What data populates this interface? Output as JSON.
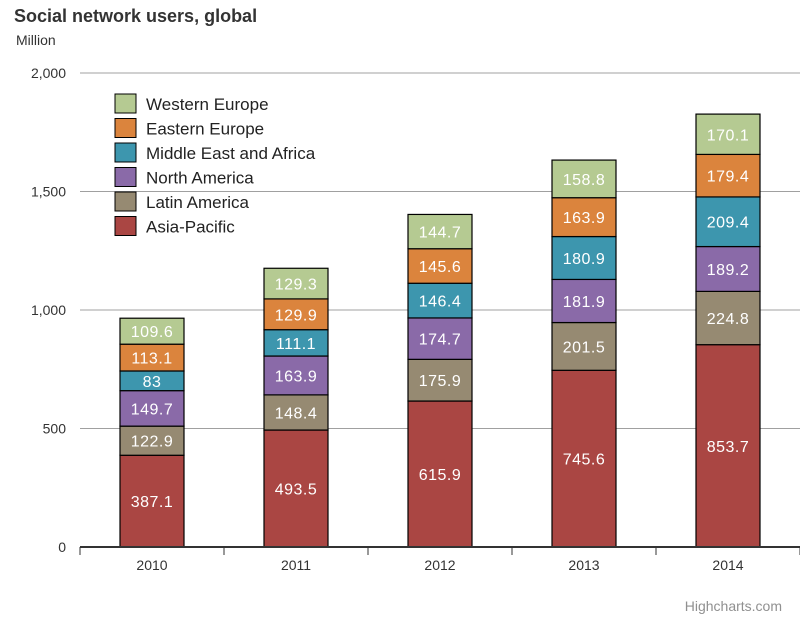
{
  "chart_data": {
    "type": "bar",
    "stacked": true,
    "title": "Social network users, global",
    "subtitle": "Million",
    "ylabel": "Million",
    "xlabel": "",
    "ylim": [
      0,
      2000
    ],
    "yticks": [
      "0",
      "500",
      "1,000",
      "1,500",
      "2,000"
    ],
    "ytick_values": [
      0,
      500,
      1000,
      1500,
      2000
    ],
    "categories": [
      "2010",
      "2011",
      "2012",
      "2013",
      "2014"
    ],
    "legend_position": "top-left",
    "series": [
      {
        "name": "Asia-Pacific",
        "color": "#aa4643",
        "values": [
          387.1,
          493.5,
          615.9,
          745.6,
          853.7
        ],
        "labels": [
          "387.1",
          "493.5",
          "615.9",
          "745.6",
          "853.7"
        ]
      },
      {
        "name": "Latin America",
        "color": "#968a72",
        "values": [
          122.9,
          148.4,
          175.9,
          201.5,
          224.8
        ],
        "labels": [
          "122.9",
          "148.4",
          "175.9",
          "201.5",
          "224.8"
        ]
      },
      {
        "name": "North America",
        "color": "#8a6aa8",
        "values": [
          149.7,
          163.9,
          174.7,
          181.9,
          189.2
        ],
        "labels": [
          "149.7",
          "163.9",
          "174.7",
          "181.9",
          "189.2"
        ]
      },
      {
        "name": "Middle East and Africa",
        "color": "#3d96ae",
        "values": [
          83,
          111.1,
          146.4,
          180.9,
          209.4
        ],
        "labels": [
          "83",
          "111.1",
          "146.4",
          "180.9",
          "209.4"
        ]
      },
      {
        "name": "Eastern Europe",
        "color": "#db843d",
        "values": [
          113.1,
          129.9,
          145.6,
          163.9,
          179.4
        ],
        "labels": [
          "113.1",
          "129.9",
          "145.6",
          "163.9",
          "179.4"
        ]
      },
      {
        "name": "Western Europe",
        "color": "#b5ca92",
        "values": [
          109.6,
          129.3,
          144.7,
          158.8,
          170.1
        ],
        "labels": [
          "109.6",
          "129.3",
          "144.7",
          "158.8",
          "170.1"
        ]
      }
    ]
  },
  "credits": "Highcharts.com"
}
